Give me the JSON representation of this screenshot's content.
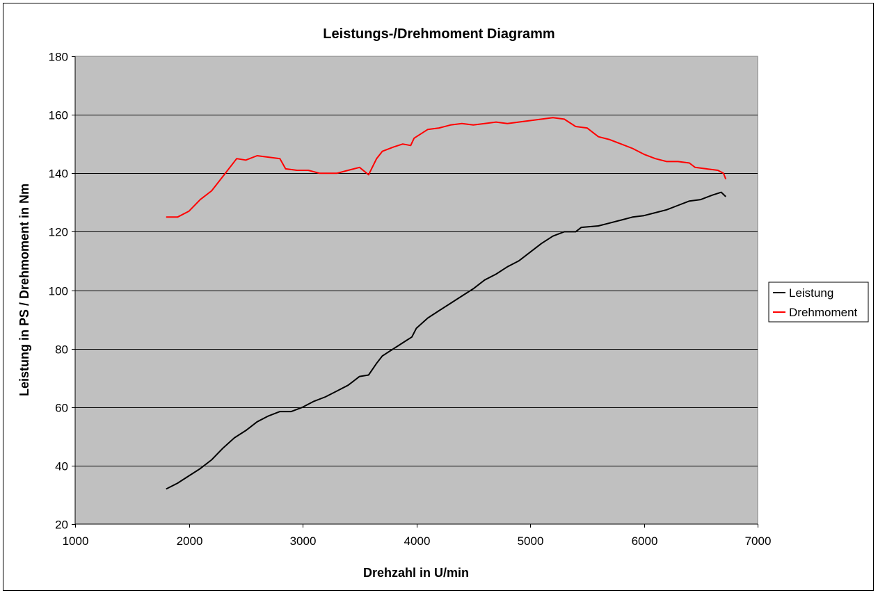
{
  "chart_data": {
    "type": "line",
    "title": "Leistungs-/Drehmoment Diagramm",
    "xlabel": "Drehzahl in U/min",
    "ylabel": "Leistung in PS / Drehmoment in Nm",
    "xlim": [
      1000,
      7000
    ],
    "ylim": [
      20,
      180
    ],
    "x_ticks": [
      1000,
      2000,
      3000,
      4000,
      5000,
      6000,
      7000
    ],
    "y_ticks": [
      20,
      40,
      60,
      80,
      100,
      120,
      140,
      160,
      180
    ],
    "grid": "horizontal",
    "plot_background": "#c0c0c0",
    "legend_position": "right",
    "series": [
      {
        "name": "Leistung",
        "color": "#000000",
        "points": [
          [
            1800,
            32
          ],
          [
            1900,
            34
          ],
          [
            2000,
            36.5
          ],
          [
            2100,
            39
          ],
          [
            2200,
            42
          ],
          [
            2300,
            46
          ],
          [
            2400,
            49.5
          ],
          [
            2500,
            52
          ],
          [
            2600,
            55
          ],
          [
            2700,
            57
          ],
          [
            2800,
            58.5
          ],
          [
            2900,
            58.5
          ],
          [
            3000,
            60
          ],
          [
            3100,
            62
          ],
          [
            3200,
            63.5
          ],
          [
            3300,
            65.5
          ],
          [
            3400,
            67.5
          ],
          [
            3500,
            70.5
          ],
          [
            3580,
            71
          ],
          [
            3650,
            75
          ],
          [
            3700,
            77.5
          ],
          [
            3800,
            80
          ],
          [
            3900,
            82.5
          ],
          [
            3960,
            84
          ],
          [
            4000,
            87
          ],
          [
            4100,
            90.5
          ],
          [
            4200,
            93
          ],
          [
            4300,
            95.5
          ],
          [
            4400,
            98
          ],
          [
            4500,
            100.5
          ],
          [
            4600,
            103.5
          ],
          [
            4700,
            105.5
          ],
          [
            4800,
            108
          ],
          [
            4900,
            110
          ],
          [
            5000,
            113
          ],
          [
            5100,
            116
          ],
          [
            5200,
            118.5
          ],
          [
            5300,
            120
          ],
          [
            5400,
            120
          ],
          [
            5450,
            121.5
          ],
          [
            5600,
            122
          ],
          [
            5700,
            123
          ],
          [
            5800,
            124
          ],
          [
            5900,
            125
          ],
          [
            6000,
            125.5
          ],
          [
            6100,
            126.5
          ],
          [
            6200,
            127.5
          ],
          [
            6300,
            129
          ],
          [
            6400,
            130.5
          ],
          [
            6500,
            131
          ],
          [
            6600,
            132.5
          ],
          [
            6680,
            133.5
          ],
          [
            6720,
            132
          ]
        ]
      },
      {
        "name": "Drehmoment",
        "color": "#ff0000",
        "points": [
          [
            1800,
            125
          ],
          [
            1900,
            125
          ],
          [
            2000,
            127
          ],
          [
            2100,
            131
          ],
          [
            2200,
            134
          ],
          [
            2300,
            139
          ],
          [
            2420,
            145
          ],
          [
            2500,
            144.5
          ],
          [
            2600,
            146
          ],
          [
            2700,
            145.5
          ],
          [
            2800,
            145
          ],
          [
            2850,
            141.5
          ],
          [
            2950,
            141
          ],
          [
            3050,
            141
          ],
          [
            3150,
            140
          ],
          [
            3300,
            140
          ],
          [
            3400,
            141
          ],
          [
            3500,
            142
          ],
          [
            3580,
            139.5
          ],
          [
            3650,
            145
          ],
          [
            3700,
            147.5
          ],
          [
            3800,
            149
          ],
          [
            3880,
            150
          ],
          [
            3950,
            149.5
          ],
          [
            3980,
            152
          ],
          [
            4100,
            155
          ],
          [
            4200,
            155.5
          ],
          [
            4300,
            156.5
          ],
          [
            4400,
            157
          ],
          [
            4500,
            156.5
          ],
          [
            4600,
            157
          ],
          [
            4700,
            157.5
          ],
          [
            4800,
            157
          ],
          [
            4900,
            157.5
          ],
          [
            5000,
            158
          ],
          [
            5100,
            158.5
          ],
          [
            5200,
            159
          ],
          [
            5300,
            158.5
          ],
          [
            5400,
            156
          ],
          [
            5500,
            155.5
          ],
          [
            5600,
            152.5
          ],
          [
            5700,
            151.5
          ],
          [
            5800,
            150
          ],
          [
            5900,
            148.5
          ],
          [
            6000,
            146.5
          ],
          [
            6100,
            145
          ],
          [
            6200,
            144
          ],
          [
            6300,
            144
          ],
          [
            6400,
            143.5
          ],
          [
            6450,
            142
          ],
          [
            6550,
            141.5
          ],
          [
            6650,
            141
          ],
          [
            6700,
            140
          ],
          [
            6720,
            138
          ]
        ]
      }
    ]
  }
}
